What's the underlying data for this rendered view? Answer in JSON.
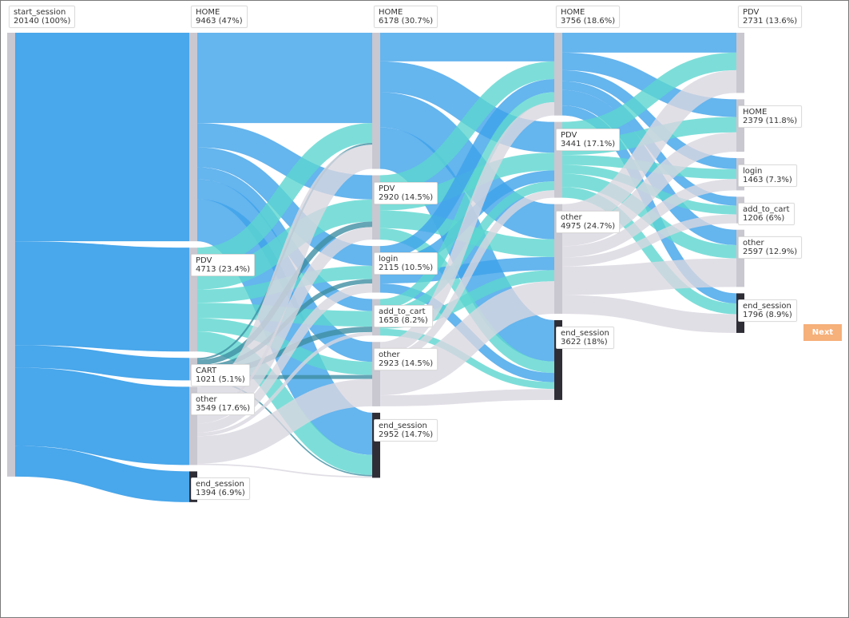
{
  "colors": {
    "HOME": "#3fa2ea",
    "PDV": "#5dd6d0",
    "CART": "#3f8ea3",
    "other": "#d9d7e0",
    "end_session": "#2f2e37",
    "login": "#3fa2ea",
    "add_to_cart": "#5dd6d0",
    "start_session": "#3fa2ea",
    "node": "#c9c7d0",
    "button": "#f6b07a"
  },
  "next_button": {
    "label": "Next"
  },
  "chart_data": {
    "type": "sankey",
    "nodes": [
      {
        "id": "n0",
        "name": "start_session",
        "label": "20140 (100%)",
        "value": 20140,
        "step": 0
      },
      {
        "id": "n1",
        "name": "HOME",
        "label": "9463 (47%)",
        "value": 9463,
        "step": 1
      },
      {
        "id": "n2",
        "name": "PDV",
        "label": "4713 (23.4%)",
        "value": 4713,
        "step": 1
      },
      {
        "id": "n3",
        "name": "CART",
        "label": "1021 (5.1%)",
        "value": 1021,
        "step": 1
      },
      {
        "id": "n4",
        "name": "other",
        "label": "3549 (17.6%)",
        "value": 3549,
        "step": 1
      },
      {
        "id": "n5",
        "name": "end_session",
        "label": "1394 (6.9%)",
        "value": 1394,
        "step": 1
      },
      {
        "id": "n6",
        "name": "HOME",
        "label": "6178 (30.7%)",
        "value": 6178,
        "step": 2
      },
      {
        "id": "n7",
        "name": "PDV",
        "label": "2920 (14.5%)",
        "value": 2920,
        "step": 2
      },
      {
        "id": "n8",
        "name": "login",
        "label": "2115 (10.5%)",
        "value": 2115,
        "step": 2
      },
      {
        "id": "n9",
        "name": "add_to_cart",
        "label": "1658 (8.2%)",
        "value": 1658,
        "step": 2
      },
      {
        "id": "n10",
        "name": "other",
        "label": "2923 (14.5%)",
        "value": 2923,
        "step": 2
      },
      {
        "id": "n11",
        "name": "end_session",
        "label": "2952 (14.7%)",
        "value": 2952,
        "step": 2
      },
      {
        "id": "n12",
        "name": "HOME",
        "label": "3756 (18.6%)",
        "value": 3756,
        "step": 3
      },
      {
        "id": "n13",
        "name": "PDV",
        "label": "3441 (17.1%)",
        "value": 3441,
        "step": 3
      },
      {
        "id": "n14",
        "name": "other",
        "label": "4975 (24.7%)",
        "value": 4975,
        "step": 3
      },
      {
        "id": "n15",
        "name": "end_session",
        "label": "3622 (18%)",
        "value": 3622,
        "step": 3
      },
      {
        "id": "n16",
        "name": "PDV",
        "label": "2731 (13.6%)",
        "value": 2731,
        "step": 4
      },
      {
        "id": "n17",
        "name": "HOME",
        "label": "2379 (11.8%)",
        "value": 2379,
        "step": 4
      },
      {
        "id": "n18",
        "name": "login",
        "label": "1463 (7.3%)",
        "value": 1463,
        "step": 4
      },
      {
        "id": "n19",
        "name": "add_to_cart",
        "label": "1206 (6%)",
        "value": 1206,
        "step": 4
      },
      {
        "id": "n20",
        "name": "other",
        "label": "2597 (12.9%)",
        "value": 2597,
        "step": 4
      },
      {
        "id": "n21",
        "name": "end_session",
        "label": "1796 (8.9%)",
        "value": 1796,
        "step": 4
      }
    ],
    "links": [
      {
        "source": "n0",
        "target": "n1",
        "value": 9463
      },
      {
        "source": "n0",
        "target": "n2",
        "value": 4713
      },
      {
        "source": "n0",
        "target": "n3",
        "value": 1021
      },
      {
        "source": "n0",
        "target": "n4",
        "value": 3549
      },
      {
        "source": "n0",
        "target": "n5",
        "value": 1394
      },
      {
        "source": "n1",
        "target": "n6",
        "value": 4100
      },
      {
        "source": "n1",
        "target": "n7",
        "value": 1100
      },
      {
        "source": "n1",
        "target": "n8",
        "value": 900
      },
      {
        "source": "n1",
        "target": "n9",
        "value": 550
      },
      {
        "source": "n1",
        "target": "n10",
        "value": 900
      },
      {
        "source": "n1",
        "target": "n11",
        "value": 1913
      },
      {
        "source": "n2",
        "target": "n6",
        "value": 900
      },
      {
        "source": "n2",
        "target": "n7",
        "value": 1000
      },
      {
        "source": "n2",
        "target": "n8",
        "value": 600
      },
      {
        "source": "n2",
        "target": "n9",
        "value": 700
      },
      {
        "source": "n2",
        "target": "n10",
        "value": 600
      },
      {
        "source": "n2",
        "target": "n11",
        "value": 913
      },
      {
        "source": "n3",
        "target": "n6",
        "value": 80
      },
      {
        "source": "n3",
        "target": "n7",
        "value": 250
      },
      {
        "source": "n3",
        "target": "n8",
        "value": 200
      },
      {
        "source": "n3",
        "target": "n9",
        "value": 250
      },
      {
        "source": "n3",
        "target": "n10",
        "value": 180
      },
      {
        "source": "n3",
        "target": "n11",
        "value": 61
      },
      {
        "source": "n4",
        "target": "n6",
        "value": 1098
      },
      {
        "source": "n4",
        "target": "n7",
        "value": 570
      },
      {
        "source": "n4",
        "target": "n8",
        "value": 415
      },
      {
        "source": "n4",
        "target": "n9",
        "value": 158
      },
      {
        "source": "n4",
        "target": "n10",
        "value": 1243
      },
      {
        "source": "n4",
        "target": "n11",
        "value": 65
      },
      {
        "source": "n6",
        "target": "n12",
        "value": 1300
      },
      {
        "source": "n6",
        "target": "n13",
        "value": 1400
      },
      {
        "source": "n6",
        "target": "n14",
        "value": 1600
      },
      {
        "source": "n6",
        "target": "n15",
        "value": 1878
      },
      {
        "source": "n7",
        "target": "n12",
        "value": 800
      },
      {
        "source": "n7",
        "target": "n13",
        "value": 800
      },
      {
        "source": "n7",
        "target": "n14",
        "value": 800
      },
      {
        "source": "n7",
        "target": "n15",
        "value": 520
      },
      {
        "source": "n8",
        "target": "n12",
        "value": 600
      },
      {
        "source": "n8",
        "target": "n13",
        "value": 500
      },
      {
        "source": "n8",
        "target": "n14",
        "value": 600
      },
      {
        "source": "n8",
        "target": "n15",
        "value": 415
      },
      {
        "source": "n9",
        "target": "n12",
        "value": 450
      },
      {
        "source": "n9",
        "target": "n13",
        "value": 400
      },
      {
        "source": "n9",
        "target": "n14",
        "value": 500
      },
      {
        "source": "n9",
        "target": "n15",
        "value": 308
      },
      {
        "source": "n10",
        "target": "n12",
        "value": 606
      },
      {
        "source": "n10",
        "target": "n13",
        "value": 341
      },
      {
        "source": "n10",
        "target": "n14",
        "value": 1475
      },
      {
        "source": "n10",
        "target": "n15",
        "value": 501
      },
      {
        "source": "n12",
        "target": "n16",
        "value": 900
      },
      {
        "source": "n12",
        "target": "n17",
        "value": 800
      },
      {
        "source": "n12",
        "target": "n18",
        "value": 500
      },
      {
        "source": "n12",
        "target": "n19",
        "value": 400
      },
      {
        "source": "n12",
        "target": "n20",
        "value": 700
      },
      {
        "source": "n12",
        "target": "n21",
        "value": 456
      },
      {
        "source": "n13",
        "target": "n16",
        "value": 800
      },
      {
        "source": "n13",
        "target": "n17",
        "value": 700
      },
      {
        "source": "n13",
        "target": "n18",
        "value": 450
      },
      {
        "source": "n13",
        "target": "n19",
        "value": 400
      },
      {
        "source": "n13",
        "target": "n20",
        "value": 600
      },
      {
        "source": "n13",
        "target": "n21",
        "value": 491
      },
      {
        "source": "n14",
        "target": "n16",
        "value": 1031
      },
      {
        "source": "n14",
        "target": "n17",
        "value": 879
      },
      {
        "source": "n14",
        "target": "n18",
        "value": 513
      },
      {
        "source": "n14",
        "target": "n19",
        "value": 406
      },
      {
        "source": "n14",
        "target": "n20",
        "value": 1297
      },
      {
        "source": "n14",
        "target": "n21",
        "value": 849
      }
    ]
  }
}
